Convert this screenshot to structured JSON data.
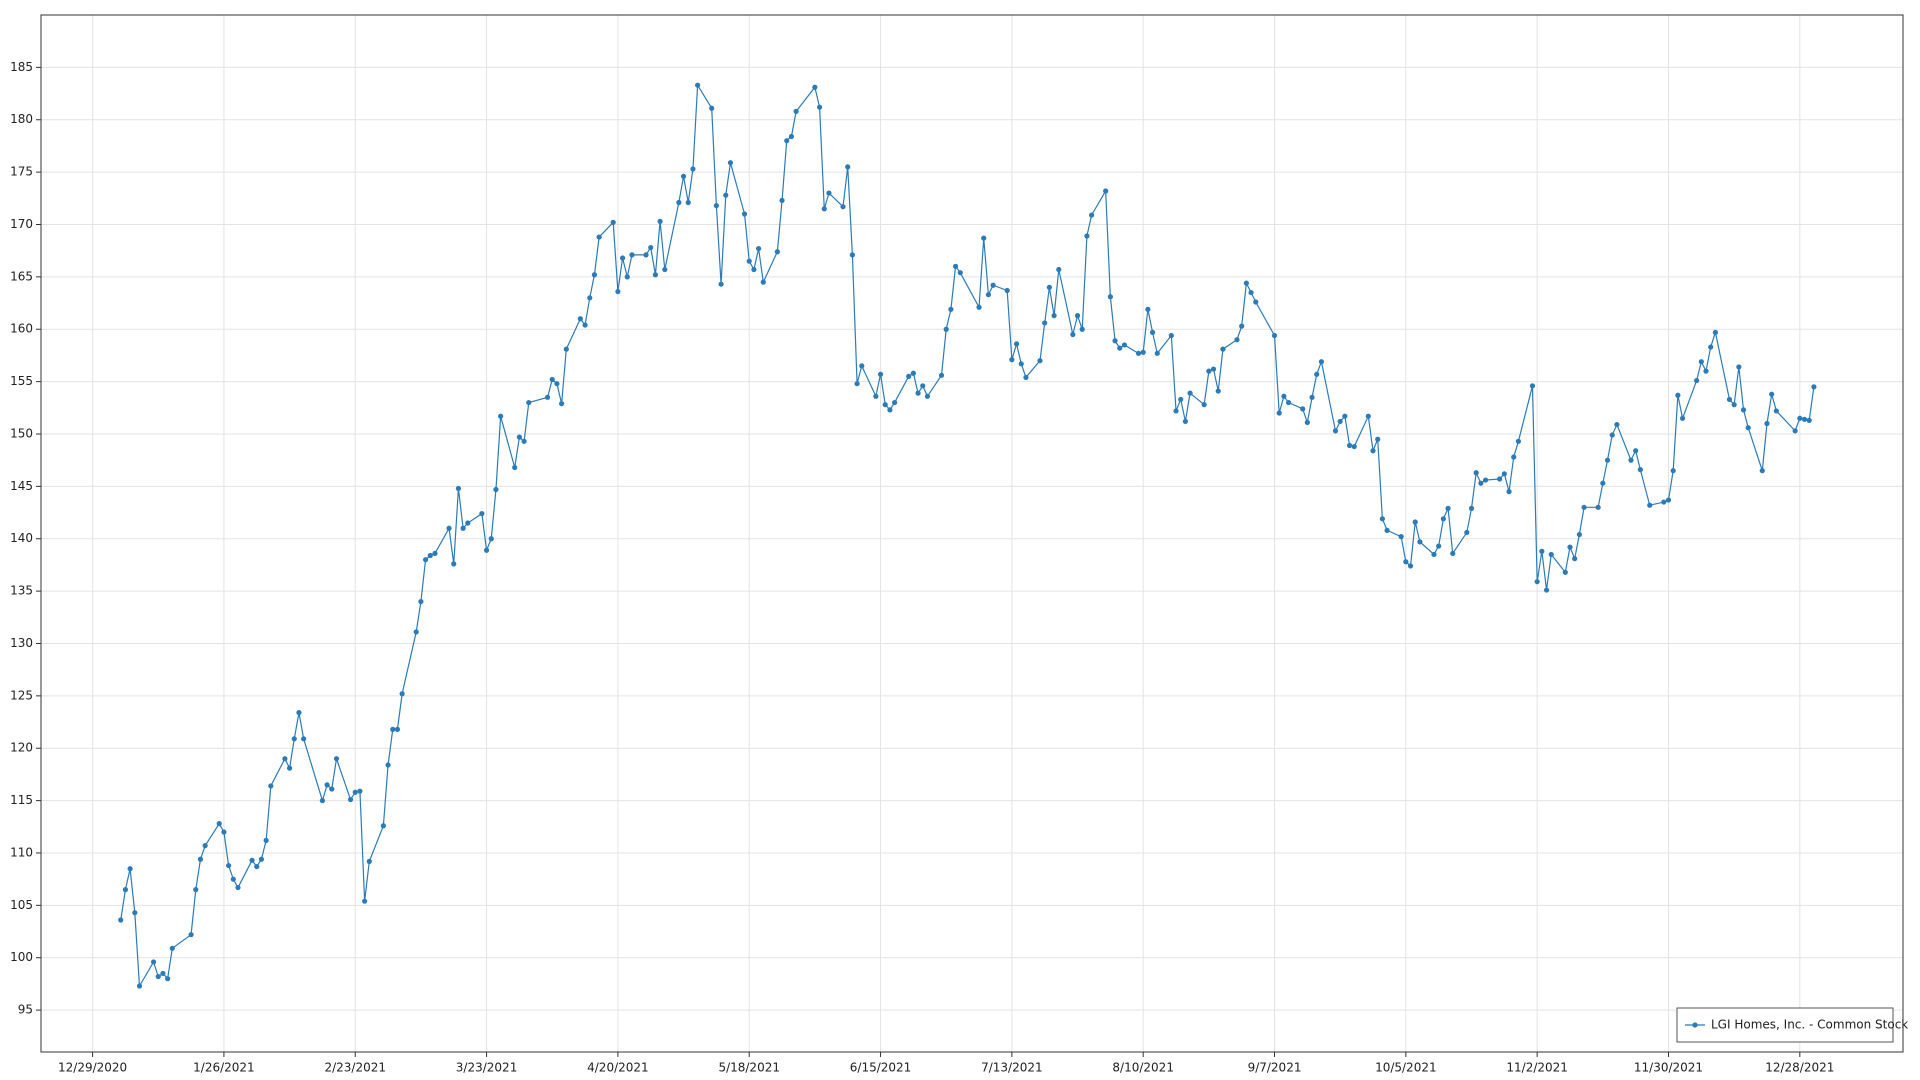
{
  "chart_data": {
    "type": "line",
    "x": [
      "1/4/2021",
      "1/5/2021",
      "1/6/2021",
      "1/7/2021",
      "1/8/2021",
      "1/11/2021",
      "1/12/2021",
      "1/13/2021",
      "1/14/2021",
      "1/15/2021",
      "1/19/2021",
      "1/20/2021",
      "1/21/2021",
      "1/22/2021",
      "1/25/2021",
      "1/26/2021",
      "1/27/2021",
      "1/28/2021",
      "1/29/2021",
      "2/1/2021",
      "2/2/2021",
      "2/3/2021",
      "2/4/2021",
      "2/5/2021",
      "2/8/2021",
      "2/9/2021",
      "2/10/2021",
      "2/11/2021",
      "2/12/2021",
      "2/16/2021",
      "2/17/2021",
      "2/18/2021",
      "2/19/2021",
      "2/22/2021",
      "2/23/2021",
      "2/24/2021",
      "2/25/2021",
      "2/26/2021",
      "3/1/2021",
      "3/2/2021",
      "3/3/2021",
      "3/4/2021",
      "3/5/2021",
      "3/8/2021",
      "3/9/2021",
      "3/10/2021",
      "3/11/2021",
      "3/12/2021",
      "3/15/2021",
      "3/16/2021",
      "3/17/2021",
      "3/18/2021",
      "3/19/2021",
      "3/22/2021",
      "3/23/2021",
      "3/24/2021",
      "3/25/2021",
      "3/26/2021",
      "3/29/2021",
      "3/30/2021",
      "3/31/2021",
      "4/1/2021",
      "4/5/2021",
      "4/6/2021",
      "4/7/2021",
      "4/8/2021",
      "4/9/2021",
      "4/12/2021",
      "4/13/2021",
      "4/14/2021",
      "4/15/2021",
      "4/16/2021",
      "4/19/2021",
      "4/20/2021",
      "4/21/2021",
      "4/22/2021",
      "4/23/2021",
      "4/26/2021",
      "4/27/2021",
      "4/28/2021",
      "4/29/2021",
      "4/30/2021",
      "5/3/2021",
      "5/4/2021",
      "5/5/2021",
      "5/6/2021",
      "5/7/2021",
      "5/10/2021",
      "5/11/2021",
      "5/12/2021",
      "5/13/2021",
      "5/14/2021",
      "5/17/2021",
      "5/18/2021",
      "5/19/2021",
      "5/20/2021",
      "5/21/2021",
      "5/24/2021",
      "5/25/2021",
      "5/26/2021",
      "5/27/2021",
      "5/28/2021",
      "6/1/2021",
      "6/2/2021",
      "6/3/2021",
      "6/4/2021",
      "6/7/2021",
      "6/8/2021",
      "6/9/2021",
      "6/10/2021",
      "6/11/2021",
      "6/14/2021",
      "6/15/2021",
      "6/16/2021",
      "6/17/2021",
      "6/18/2021",
      "6/21/2021",
      "6/22/2021",
      "6/23/2021",
      "6/24/2021",
      "6/25/2021",
      "6/28/2021",
      "6/29/2021",
      "6/30/2021",
      "7/1/2021",
      "7/2/2021",
      "7/6/2021",
      "7/7/2021",
      "7/8/2021",
      "7/9/2021",
      "7/12/2021",
      "7/13/2021",
      "7/14/2021",
      "7/15/2021",
      "7/16/2021",
      "7/19/2021",
      "7/20/2021",
      "7/21/2021",
      "7/22/2021",
      "7/23/2021",
      "7/26/2021",
      "7/27/2021",
      "7/28/2021",
      "7/29/2021",
      "7/30/2021",
      "8/2/2021",
      "8/3/2021",
      "8/4/2021",
      "8/5/2021",
      "8/6/2021",
      "8/9/2021",
      "8/10/2021",
      "8/11/2021",
      "8/12/2021",
      "8/13/2021",
      "8/16/2021",
      "8/17/2021",
      "8/18/2021",
      "8/19/2021",
      "8/20/2021",
      "8/23/2021",
      "8/24/2021",
      "8/25/2021",
      "8/26/2021",
      "8/27/2021",
      "8/30/2021",
      "8/31/2021",
      "9/1/2021",
      "9/2/2021",
      "9/3/2021",
      "9/7/2021",
      "9/8/2021",
      "9/9/2021",
      "9/10/2021",
      "9/13/2021",
      "9/14/2021",
      "9/15/2021",
      "9/16/2021",
      "9/17/2021",
      "9/20/2021",
      "9/21/2021",
      "9/22/2021",
      "9/23/2021",
      "9/24/2021",
      "9/27/2021",
      "9/28/2021",
      "9/29/2021",
      "9/30/2021",
      "10/1/2021",
      "10/4/2021",
      "10/5/2021",
      "10/6/2021",
      "10/7/2021",
      "10/8/2021",
      "10/11/2021",
      "10/12/2021",
      "10/13/2021",
      "10/14/2021",
      "10/15/2021",
      "10/18/2021",
      "10/19/2021",
      "10/20/2021",
      "10/21/2021",
      "10/22/2021",
      "10/25/2021",
      "10/26/2021",
      "10/27/2021",
      "10/28/2021",
      "10/29/2021",
      "11/1/2021",
      "11/2/2021",
      "11/3/2021",
      "11/4/2021",
      "11/5/2021",
      "11/8/2021",
      "11/9/2021",
      "11/10/2021",
      "11/11/2021",
      "11/12/2021",
      "11/15/2021",
      "11/16/2021",
      "11/17/2021",
      "11/18/2021",
      "11/19/2021",
      "11/22/2021",
      "11/23/2021",
      "11/24/2021",
      "11/26/2021",
      "11/29/2021",
      "11/30/2021",
      "12/1/2021",
      "12/2/2021",
      "12/3/2021",
      "12/6/2021",
      "12/7/2021",
      "12/8/2021",
      "12/9/2021",
      "12/10/2021",
      "12/13/2021",
      "12/14/2021",
      "12/15/2021",
      "12/16/2021",
      "12/17/2021",
      "12/20/2021",
      "12/21/2021",
      "12/22/2021",
      "12/23/2021",
      "12/27/2021",
      "12/28/2021",
      "12/29/2021",
      "12/30/2021",
      "12/31/2021"
    ],
    "series": [
      {
        "name": "LGI Homes, Inc. - Common Stock",
        "color": "#2b7bb9",
        "values": [
          103.6,
          106.5,
          108.5,
          104.3,
          97.3,
          99.6,
          98.2,
          98.5,
          98.0,
          100.9,
          102.2,
          106.5,
          109.4,
          110.7,
          112.8,
          112.0,
          108.8,
          107.5,
          106.7,
          109.3,
          108.7,
          109.4,
          111.2,
          116.4,
          119.0,
          118.1,
          120.9,
          123.4,
          120.9,
          115.0,
          116.5,
          116.1,
          119.0,
          115.1,
          115.8,
          115.9,
          105.4,
          109.2,
          112.6,
          118.4,
          121.8,
          121.8,
          125.2,
          131.1,
          134.0,
          138.0,
          138.4,
          138.6,
          141.0,
          137.6,
          144.8,
          141.0,
          141.5,
          142.4,
          138.9,
          140.0,
          144.7,
          151.7,
          146.8,
          149.7,
          149.3,
          153.0,
          153.5,
          155.2,
          154.8,
          152.9,
          158.1,
          161.0,
          160.4,
          163.0,
          165.2,
          168.8,
          170.2,
          163.6,
          166.8,
          165.0,
          167.1,
          167.1,
          167.8,
          165.2,
          170.3,
          165.7,
          172.1,
          174.6,
          172.1,
          175.3,
          183.3,
          181.1,
          171.8,
          164.3,
          172.8,
          175.9,
          171.0,
          166.5,
          165.7,
          167.7,
          164.5,
          167.4,
          172.3,
          178.0,
          178.4,
          180.8,
          183.1,
          181.2,
          171.5,
          173.0,
          171.7,
          175.5,
          167.1,
          154.8,
          156.5,
          153.6,
          155.7,
          152.8,
          152.3,
          153.0,
          155.5,
          155.8,
          153.9,
          154.6,
          153.6,
          155.6,
          160.0,
          161.9,
          166.0,
          165.4,
          162.1,
          168.7,
          163.3,
          164.2,
          163.7,
          157.1,
          158.6,
          156.7,
          155.4,
          157.0,
          160.6,
          164.0,
          161.3,
          165.7,
          159.5,
          161.3,
          160.0,
          168.9,
          170.9,
          173.2,
          163.1,
          158.9,
          158.2,
          158.5,
          157.7,
          157.8,
          161.9,
          159.7,
          157.7,
          159.4,
          152.2,
          153.3,
          151.2,
          153.9,
          152.8,
          156.0,
          156.2,
          154.1,
          158.1,
          159.0,
          160.3,
          164.4,
          163.5,
          162.6,
          159.4,
          152.0,
          153.6,
          153.0,
          152.4,
          151.1,
          153.5,
          155.7,
          156.9,
          150.3,
          151.2,
          151.7,
          148.9,
          148.8,
          151.7,
          148.4,
          149.5,
          141.9,
          140.8,
          140.2,
          137.8,
          137.4,
          141.6,
          139.7,
          138.5,
          139.3,
          141.9,
          142.9,
          138.6,
          140.6,
          142.9,
          146.3,
          145.3,
          145.6,
          145.7,
          146.2,
          144.5,
          147.8,
          149.3,
          154.6,
          135.9,
          138.8,
          135.1,
          138.5,
          136.8,
          139.2,
          138.1,
          140.4,
          143.0,
          143.0,
          145.3,
          147.5,
          149.9,
          150.9,
          147.5,
          148.4,
          146.6,
          143.2,
          143.5,
          143.7,
          146.5,
          153.7,
          151.5,
          155.1,
          156.9,
          156.0,
          158.3,
          159.7,
          153.3,
          152.8,
          156.4,
          152.3,
          150.6,
          146.5,
          151.0,
          153.8,
          152.2,
          150.3,
          151.5,
          151.4,
          151.3,
          154.5
        ]
      }
    ],
    "xlim": [
      "12/18/2020",
      "1/19/2022"
    ],
    "xticks": [
      "12/29/2020",
      "1/26/2021",
      "2/23/2021",
      "3/23/2021",
      "4/20/2021",
      "5/18/2021",
      "6/15/2021",
      "7/13/2021",
      "8/10/2021",
      "9/7/2021",
      "10/5/2021",
      "11/2/2021",
      "11/30/2021",
      "12/28/2021"
    ],
    "ylim": [
      91,
      190
    ],
    "yticks": [
      95,
      100,
      105,
      110,
      115,
      120,
      125,
      130,
      135,
      140,
      145,
      150,
      155,
      160,
      165,
      170,
      175,
      180,
      185
    ],
    "grid": true,
    "legend": "lower right"
  }
}
